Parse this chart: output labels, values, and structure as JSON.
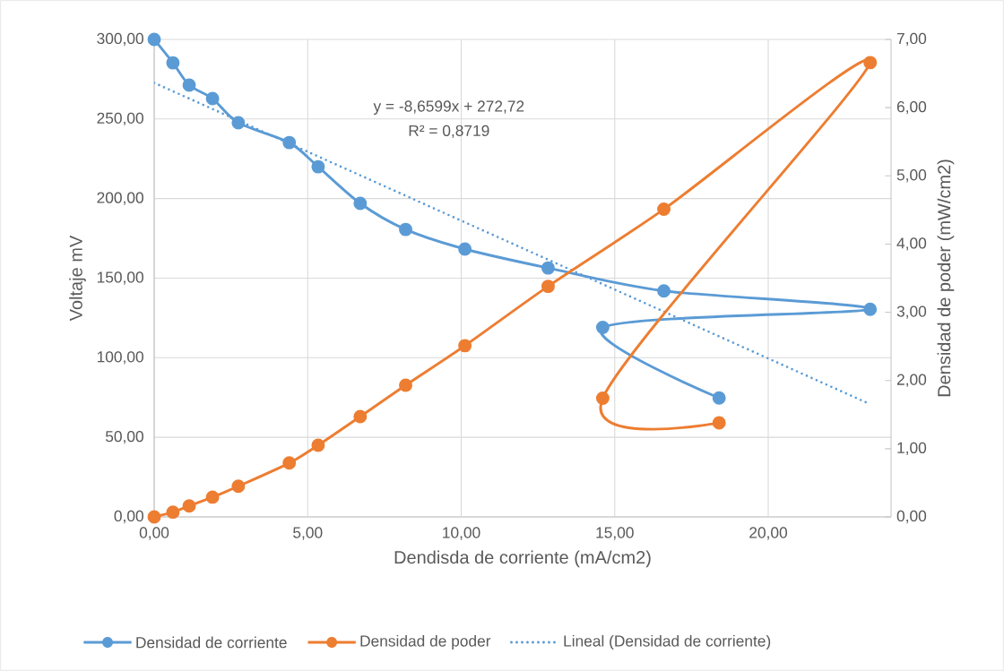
{
  "chart_data": {
    "type": "line",
    "xlabel": "Dendisda de corriente (mA/cm2)",
    "ylabel": "Voltaje mV",
    "y2label": "Densidad de poder (mW/cm2)",
    "xlim": [
      0,
      24
    ],
    "xticks": [
      {
        "value": 0,
        "label": "0,00"
      },
      {
        "value": 5,
        "label": "5,00"
      },
      {
        "value": 10,
        "label": "10,00"
      },
      {
        "value": 15,
        "label": "15,00"
      },
      {
        "value": 20,
        "label": "20,00"
      }
    ],
    "ylim": [
      0,
      300
    ],
    "yticks": [
      {
        "value": 0,
        "label": "0,00"
      },
      {
        "value": 50,
        "label": "50,00"
      },
      {
        "value": 100,
        "label": "100,00"
      },
      {
        "value": 150,
        "label": "150,00"
      },
      {
        "value": 200,
        "label": "200,00"
      },
      {
        "value": 250,
        "label": "250,00"
      },
      {
        "value": 300,
        "label": "300,00"
      }
    ],
    "y2lim": [
      0,
      7
    ],
    "y2ticks": [
      {
        "value": 0,
        "label": "0,00"
      },
      {
        "value": 1,
        "label": "1,00"
      },
      {
        "value": 2,
        "label": "2,00"
      },
      {
        "value": 3,
        "label": "3,00"
      },
      {
        "value": 4,
        "label": "4,00"
      },
      {
        "value": 5,
        "label": "5,00"
      },
      {
        "value": 6,
        "label": "6,00"
      },
      {
        "value": 7,
        "label": "7,00"
      }
    ],
    "x": [
      0,
      0.61,
      1.14,
      1.9,
      2.74,
      4.4,
      5.34,
      6.71,
      8.19,
      10.12,
      12.83,
      16.6,
      23.32,
      14.61,
      18.4
    ],
    "series": [
      {
        "name": "Densidad de corriente",
        "color": "#5b9bd5",
        "values": [
          300,
          285.3,
          271.3,
          262.8,
          247.6,
          235.2,
          220,
          197,
          180.6,
          168.3,
          156.4,
          142,
          130.4,
          119,
          74.7
        ]
      },
      {
        "name": "Densidad de poder",
        "color": "#ed7d31",
        "axis": "y2",
        "values": [
          0,
          0.07,
          0.16,
          0.29,
          0.45,
          0.79,
          1.05,
          1.47,
          1.93,
          2.51,
          3.38,
          4.51,
          6.66,
          1.74,
          1.38
        ]
      },
      {
        "name": "Lineal (Densidad de corriente)",
        "color": "#5b9bd5",
        "type": "line",
        "marker": "none",
        "line_style": "dotted",
        "x": [
          0,
          23.32
        ],
        "values": [
          272.7,
          70.8
        ]
      }
    ],
    "annotations": [
      "y = -8,6599x + 272,72",
      "R² = 0,8719"
    ],
    "marker": "circle",
    "grid": true,
    "legend": "bottom"
  }
}
